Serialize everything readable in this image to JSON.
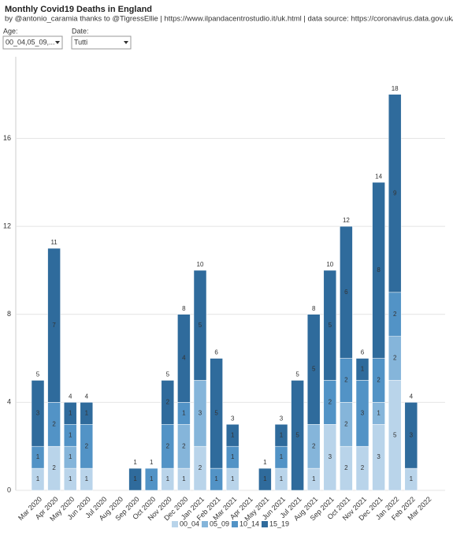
{
  "filters": [
    {
      "label": "Age:",
      "value": "00_04,05_09,..."
    },
    {
      "label": "Date:",
      "value": "Tutti"
    }
  ],
  "chart_data": {
    "type": "bar",
    "stacked": true,
    "title": "Monthly Covid19 Deaths in England",
    "subtitle": "by @antonio_caramia thanks to @TigressEllie | https://www.ilpandacentrostudio.it/uk.html | data source: https://coronavirus.data.gov.uk/details/download",
    "categories": [
      "Mar 2020",
      "Apr 2020",
      "May 2020",
      "Jun 2020",
      "Jul 2020",
      "Aug 2020",
      "Sep 2020",
      "Oct 2020",
      "Nov 2020",
      "Dec 2020",
      "Jan 2021",
      "Feb 2021",
      "Mar 2021",
      "Apr 2021",
      "May 2021",
      "Jun 2021",
      "Jul 2021",
      "Aug 2021",
      "Sep 2021",
      "Oct 2021",
      "Nov 2021",
      "Dec 2021",
      "Jan 2022",
      "Feb 2022",
      "Mar 2022"
    ],
    "series": [
      {
        "name": "00_04",
        "color": "#b9d4ea",
        "values": [
          1,
          2,
          1,
          1,
          0,
          0,
          0,
          0,
          1,
          1,
          2,
          0,
          1,
          0,
          0,
          1,
          0,
          1,
          3,
          2,
          2,
          3,
          5,
          1,
          0
        ]
      },
      {
        "name": "05_09",
        "color": "#85b5da",
        "values": [
          0,
          0,
          1,
          0,
          0,
          0,
          0,
          0,
          0,
          2,
          3,
          0,
          0,
          0,
          0,
          0,
          0,
          2,
          0,
          2,
          0,
          1,
          2,
          0,
          0
        ]
      },
      {
        "name": "10_14",
        "color": "#5293c6",
        "values": [
          1,
          2,
          1,
          2,
          0,
          0,
          0,
          1,
          2,
          1,
          0,
          1,
          1,
          0,
          0,
          1,
          0,
          0,
          2,
          2,
          3,
          2,
          2,
          0,
          0
        ]
      },
      {
        "name": "15_19",
        "color": "#2f6b9c",
        "values": [
          3,
          7,
          1,
          1,
          0,
          0,
          1,
          0,
          2,
          4,
          5,
          5,
          1,
          0,
          1,
          1,
          5,
          5,
          5,
          6,
          1,
          8,
          9,
          3,
          0
        ]
      }
    ],
    "totals": [
      5,
      11,
      4,
      4,
      null,
      null,
      1,
      1,
      5,
      8,
      10,
      6,
      3,
      null,
      1,
      3,
      5,
      8,
      10,
      12,
      6,
      14,
      18,
      4,
      null
    ],
    "ylim": [
      0,
      19.6
    ],
    "yticks": [
      0,
      4,
      8,
      12,
      16
    ],
    "grid": true
  }
}
